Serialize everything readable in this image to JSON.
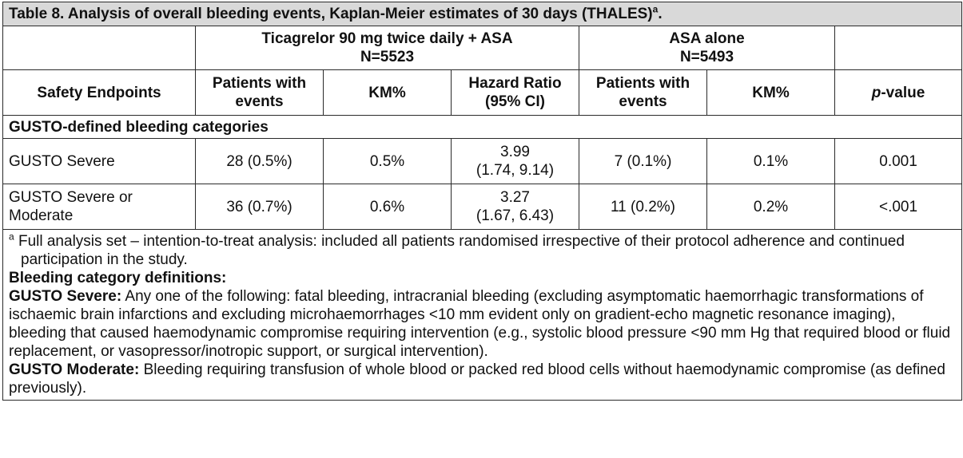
{
  "title": {
    "text": "Table 8. Analysis of overall bleeding events, Kaplan-Meier estimates of 30 days (THALES)",
    "marker": "a",
    "end": "."
  },
  "groups": {
    "ticagrelor": {
      "line1": "Ticagrelor 90 mg twice daily + ASA",
      "line2": "N=5523"
    },
    "asa": {
      "line1": "ASA alone",
      "line2": "N=5493"
    }
  },
  "headers": {
    "endpoints": "Safety Endpoints",
    "patients_t": [
      "Patients with",
      "events"
    ],
    "km_t": "KM%",
    "hr": [
      "Hazard Ratio",
      "(95% CI)"
    ],
    "patients_a": [
      "Patients with",
      "events"
    ],
    "km_a": "KM%",
    "p_italic": "p",
    "p_rest": "-value"
  },
  "category": "GUSTO-defined bleeding categories",
  "rows": [
    {
      "endpoint": [
        "GUSTO Severe"
      ],
      "patients_t": "28 (0.5%)",
      "km_t": "0.5%",
      "hr": [
        "3.99",
        "(1.74, 9.14)"
      ],
      "patients_a": "7 (0.1%)",
      "km_a": "0.1%",
      "p": "0.001"
    },
    {
      "endpoint": [
        "GUSTO Severe or",
        "Moderate"
      ],
      "patients_t": "36 (0.7%)",
      "km_t": "0.6%",
      "hr": [
        "3.27",
        "(1.67, 6.43)"
      ],
      "patients_a": "11 (0.2%)",
      "km_a": "0.2%",
      "p": "<.001"
    }
  ],
  "footnote": {
    "marker": "a",
    "text": "Full analysis set – intention-to-treat analysis: included all patients randomised irrespective of their protocol adherence and continued participation in the study.",
    "definitions_heading": "Bleeding category definitions:",
    "severe_label": "GUSTO Severe:",
    "severe_text": "Any one of the following: fatal bleeding, intracranial bleeding (excluding asymptomatic haemorrhagic transformations of ischaemic brain infarctions and excluding microhaemorrhages <10 mm evident only on gradient-echo magnetic resonance imaging), bleeding that caused haemodynamic compromise requiring intervention (e.g., systolic blood pressure <90 mm Hg that required blood or fluid replacement, or vasopressor/inotropic support, or surgical intervention).",
    "moderate_label": "GUSTO Moderate:",
    "moderate_text": "Bleeding requiring transfusion of whole blood or packed red blood cells without haemodynamic compromise (as defined previously)."
  },
  "colors": {
    "title_bg": "#d9d9d9",
    "border": "#2a2a2a",
    "text": "#111111"
  }
}
